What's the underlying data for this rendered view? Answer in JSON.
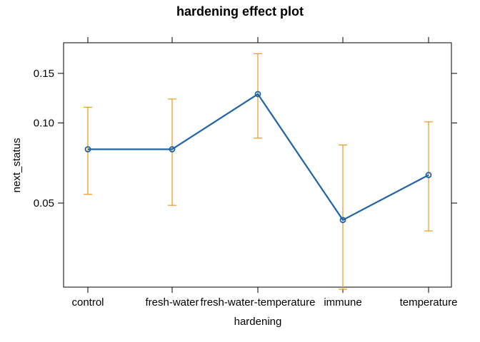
{
  "chart_data": {
    "type": "line",
    "title": "hardening effect plot",
    "xlabel": "hardening",
    "ylabel": "next_status",
    "y_scale": "logit",
    "categories": [
      "control",
      "fresh-water",
      "fresh-water-temperature",
      "immune",
      "temperature"
    ],
    "series": [
      {
        "values": [
          0.08,
          0.08,
          0.127,
          0.043,
          0.064
        ],
        "lower": [
          0.054,
          0.049,
          0.088,
          0.023,
          0.039
        ],
        "upper": [
          0.114,
          0.122,
          0.175,
          0.083,
          0.101
        ]
      }
    ],
    "y_ticks": [
      0.05,
      0.1,
      0.15
    ],
    "y_tick_labels": [
      "0.05",
      "0.10",
      "0.15"
    ],
    "grid": false,
    "legend": "none",
    "colors": {
      "line": "#1f63a8",
      "error_bar": "#e79a1f",
      "frame": "#000000"
    }
  }
}
